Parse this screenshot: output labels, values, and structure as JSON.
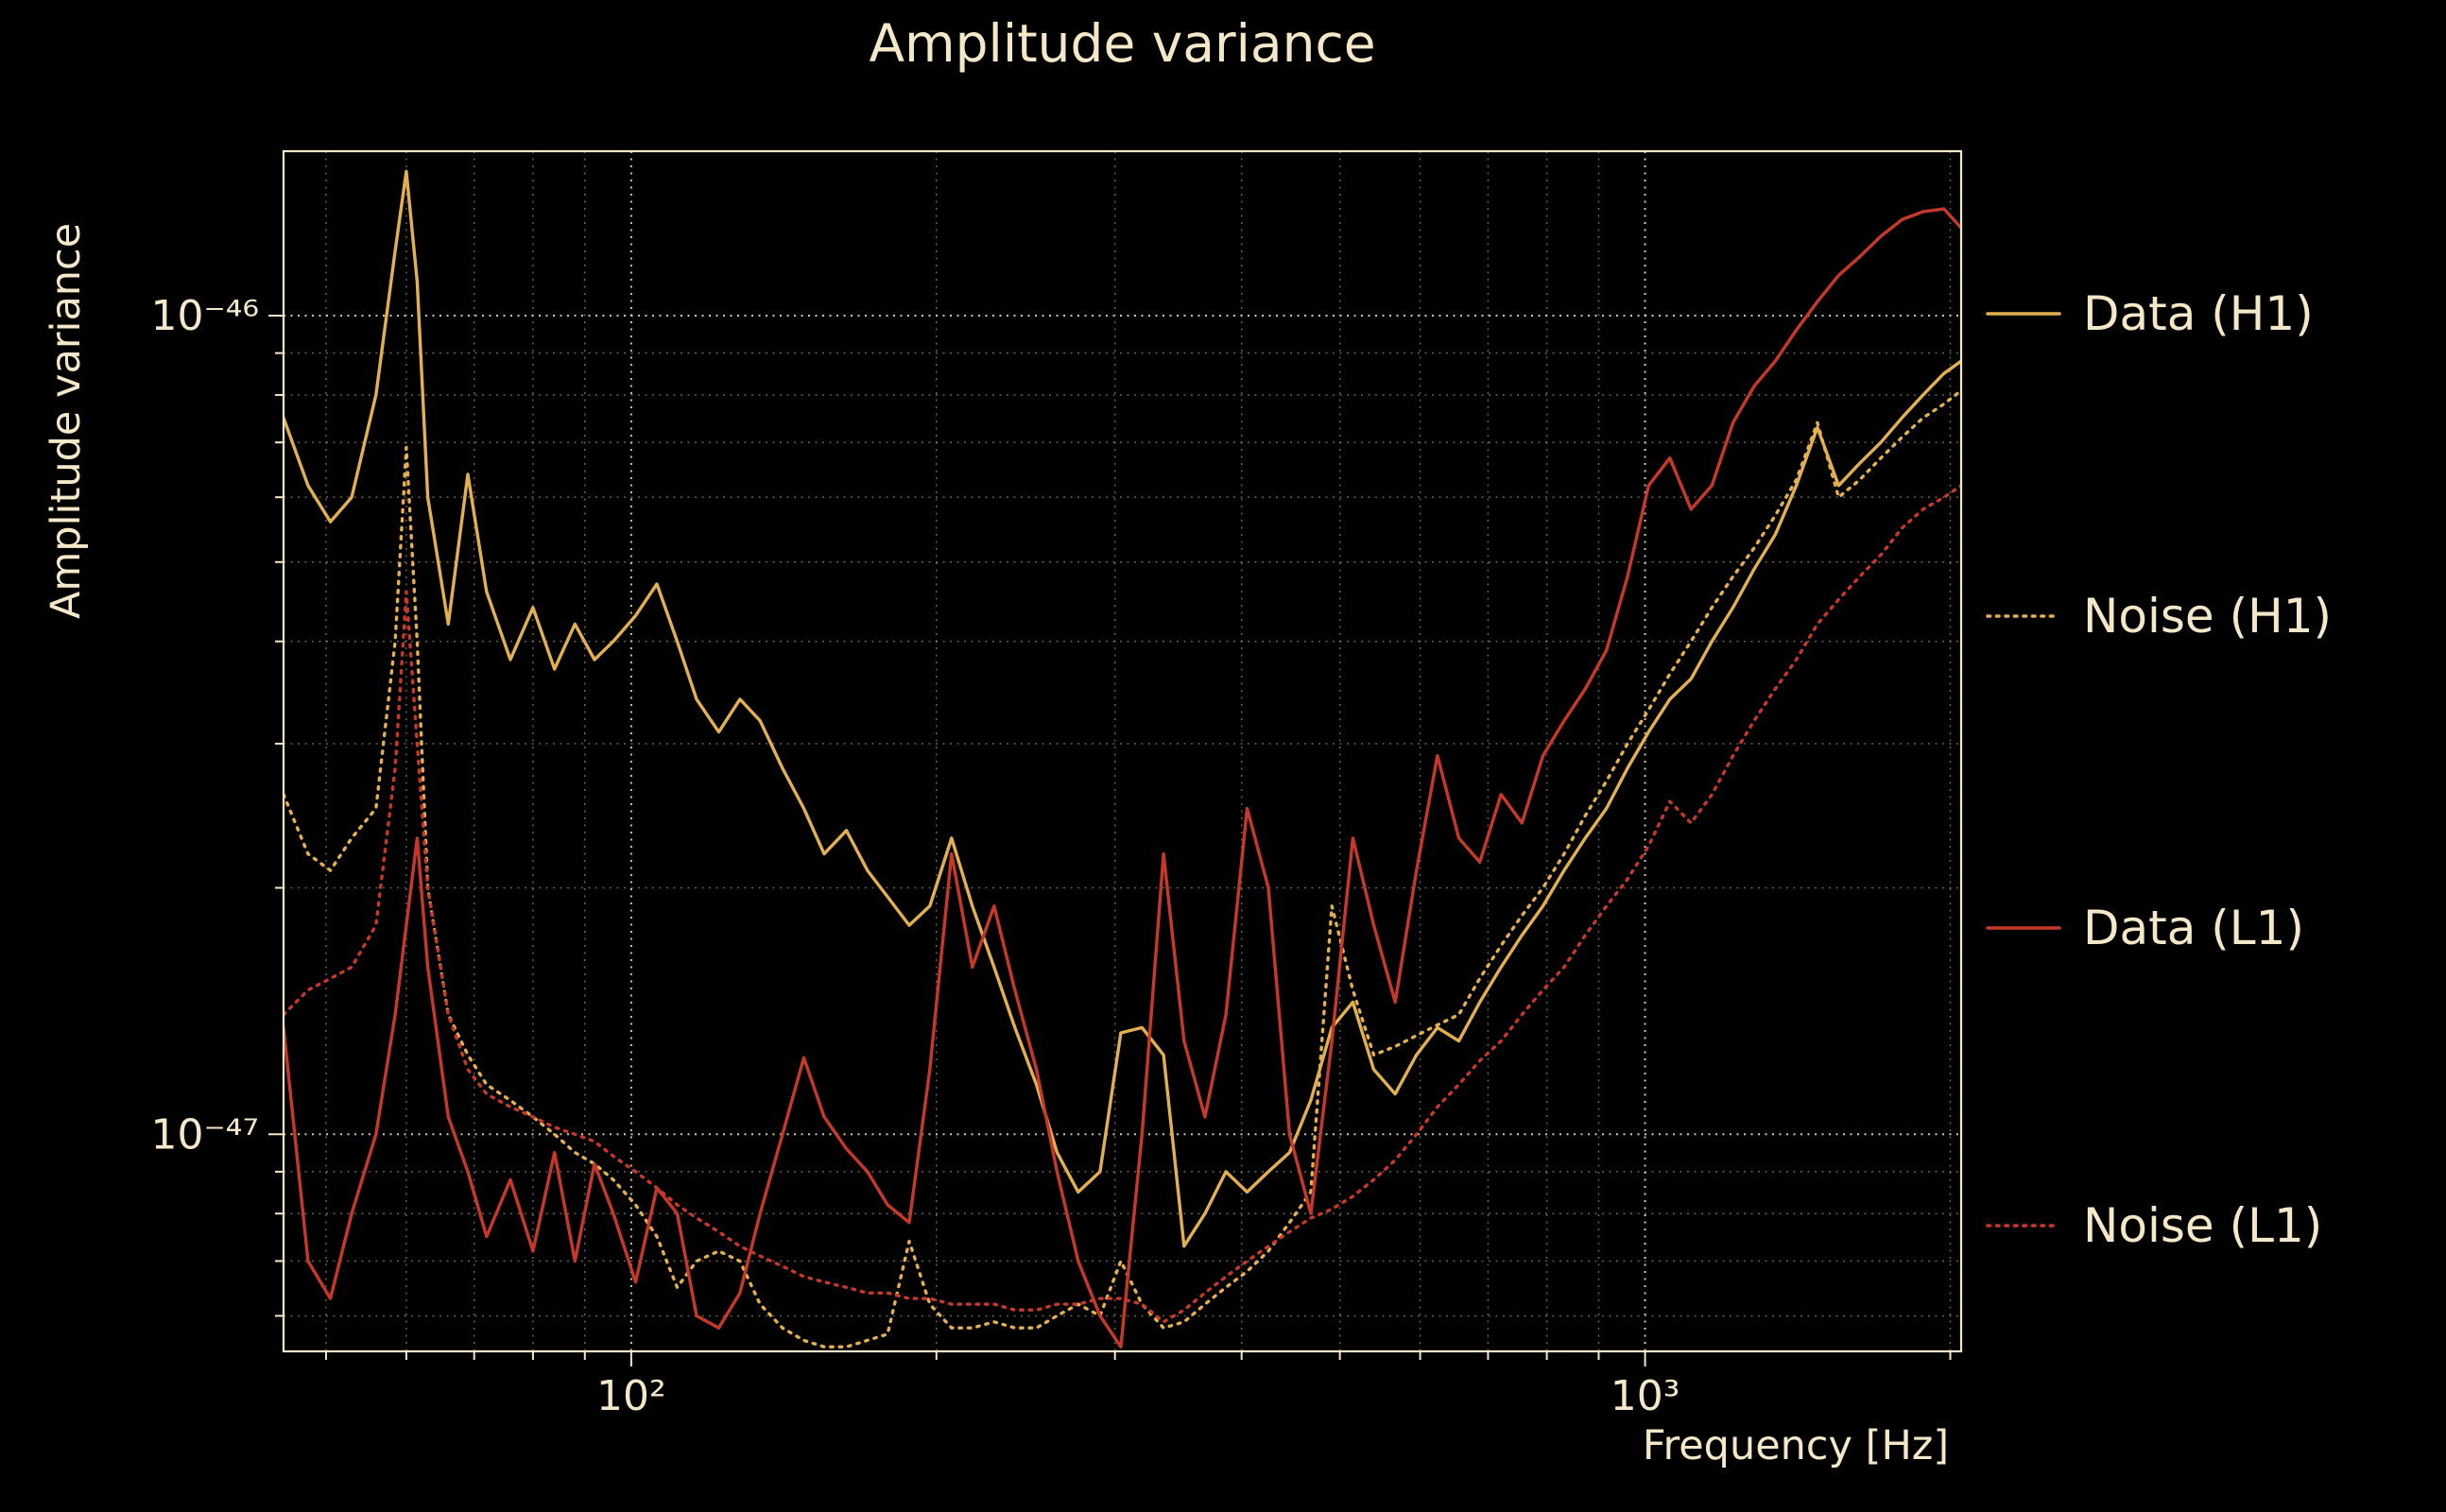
{
  "colors": {
    "background": "#000000",
    "text": "#f4e8c8",
    "grid": "#f4e8c8",
    "h1": "#e3b04f",
    "l1": "#c7382a"
  },
  "chart_data": {
    "type": "line",
    "title": "Amplitude variance",
    "xlabel": "Frequency [Hz]",
    "ylabel": "Amplitude variance",
    "xscale": "log",
    "yscale": "log",
    "grid": "both, dotted",
    "legend_position": "right-outside",
    "xlim": [
      45.4,
      2050
    ],
    "ylim": [
      5.43e-48,
      1.588e-46
    ],
    "x_ticks": [
      {
        "label": "10²",
        "value": 100
      },
      {
        "label": "10³",
        "value": 1000
      }
    ],
    "y_ticks": [
      {
        "label": "10⁻⁴⁶",
        "value": 1e-46
      },
      {
        "label": "10⁻⁴⁷",
        "value": 1e-47
      }
    ],
    "x_grid_major": [
      100,
      1000
    ],
    "x_grid_minor": [
      50,
      60,
      70,
      80,
      90,
      200,
      300,
      400,
      500,
      600,
      700,
      800,
      900,
      2000
    ],
    "y_grid_major": [
      1e-47,
      1e-46
    ],
    "y_grid_minor": [
      6e-48,
      7e-48,
      8e-48,
      9e-48,
      2e-47,
      3e-47,
      4e-47,
      5e-47,
      6e-47,
      7e-47,
      8e-47,
      9e-47
    ],
    "value_scale": 1e-48,
    "x": [
      45.4,
      48,
      50.5,
      53,
      56,
      58.5,
      60,
      61.5,
      63,
      66,
      69,
      72,
      76,
      80,
      84,
      88,
      92,
      96,
      101,
      106,
      111,
      116,
      122,
      128,
      134,
      141,
      148,
      155,
      163,
      171,
      179,
      188,
      197,
      207,
      217,
      228,
      239,
      251,
      263,
      276,
      290,
      304,
      319,
      335,
      351,
      368,
      386,
      405,
      425,
      446,
      468,
      491,
      515,
      540,
      567,
      595,
      624,
      655,
      687,
      721,
      756,
      793,
      832,
      873,
      916,
      961,
      1008,
      1058,
      1110,
      1164,
      1221,
      1281,
      1344,
      1410,
      1479,
      1552,
      1628,
      1708,
      1792,
      1880,
      1972,
      2050
    ],
    "series": [
      {
        "name": "Data (H1)",
        "color_key": "h1",
        "style": "solid",
        "values": [
          75,
          62,
          56,
          60,
          80,
          120,
          150,
          110,
          60,
          42,
          64,
          46,
          38,
          44,
          37,
          42,
          38,
          40,
          43,
          47,
          40,
          34,
          31,
          34,
          32,
          28,
          25,
          22,
          23.5,
          21,
          19.5,
          18,
          19,
          23,
          19,
          16,
          13.5,
          11.5,
          9.5,
          8.5,
          9,
          13.3,
          13.5,
          12.5,
          7.3,
          8,
          9,
          8.5,
          9,
          9.5,
          11,
          13.5,
          14.5,
          12,
          11.2,
          12.5,
          13.5,
          13,
          14.5,
          16,
          17.5,
          19,
          21,
          23,
          25,
          28,
          31,
          34,
          36,
          40,
          44,
          49,
          54,
          62,
          73,
          62,
          66,
          70,
          75,
          80,
          85,
          88
        ]
      },
      {
        "name": "Noise (H1)",
        "color_key": "h1",
        "style": "dotted",
        "values": [
          26,
          22,
          21,
          23,
          25,
          40,
          69,
          40,
          20,
          14,
          12.5,
          11.5,
          11,
          10.5,
          10,
          9.5,
          9.2,
          8.8,
          8.2,
          7.5,
          6.5,
          7,
          7.2,
          7,
          6.2,
          5.8,
          5.6,
          5.5,
          5.5,
          5.6,
          5.7,
          7.4,
          6.2,
          5.8,
          5.8,
          5.9,
          5.8,
          5.8,
          6,
          6.2,
          6,
          7,
          6.2,
          5.8,
          5.9,
          6.2,
          6.5,
          6.8,
          7.2,
          7.8,
          8.5,
          19,
          15,
          12.5,
          12.8,
          13.2,
          13.6,
          14,
          15.5,
          17,
          18.5,
          20,
          22,
          24.5,
          27,
          30,
          33,
          36.5,
          40,
          44,
          48,
          52,
          57,
          63,
          74,
          60,
          63,
          67,
          71,
          75,
          78,
          81
        ]
      },
      {
        "name": "Data (L1)",
        "color_key": "l1",
        "style": "solid",
        "values": [
          13.5,
          7,
          6.3,
          8,
          10,
          14,
          18,
          23,
          16,
          10.5,
          9,
          7.5,
          8.8,
          7.2,
          9.5,
          7,
          9.2,
          8,
          6.6,
          8.6,
          8,
          6,
          5.8,
          6.4,
          8,
          10,
          12.4,
          10.5,
          9.6,
          9,
          8.2,
          7.8,
          12,
          22,
          16,
          19,
          15,
          12,
          9,
          7,
          6,
          5.5,
          10,
          22,
          13,
          10.5,
          14,
          25,
          20,
          10,
          8,
          13,
          23,
          18,
          14.5,
          21,
          29,
          23,
          21.5,
          26,
          24,
          29,
          32,
          35,
          39,
          48,
          62,
          67,
          58,
          62,
          74,
          82,
          88,
          96,
          104,
          112,
          118,
          125,
          131,
          134,
          135,
          128
        ]
      },
      {
        "name": "Noise (L1)",
        "color_key": "l1",
        "style": "dotted",
        "values": [
          14,
          15,
          15.5,
          16,
          18,
          28,
          46,
          30,
          20,
          14,
          12,
          11.2,
          10.8,
          10.5,
          10.2,
          10,
          9.8,
          9.4,
          9,
          8.6,
          8.2,
          7.9,
          7.6,
          7.3,
          7.1,
          6.9,
          6.7,
          6.6,
          6.5,
          6.4,
          6.4,
          6.3,
          6.3,
          6.2,
          6.2,
          6.2,
          6.1,
          6.1,
          6.2,
          6.2,
          6.3,
          6.3,
          6.2,
          5.9,
          6.1,
          6.4,
          6.7,
          7,
          7.3,
          7.6,
          7.9,
          8.1,
          8.4,
          8.8,
          9.3,
          10,
          10.8,
          11.5,
          12.3,
          13,
          14,
          15,
          16,
          17.5,
          19,
          20.5,
          22.5,
          25.5,
          24,
          26,
          29,
          32,
          35,
          38,
          42,
          45,
          48,
          51,
          55,
          58,
          60,
          62
        ]
      }
    ]
  }
}
